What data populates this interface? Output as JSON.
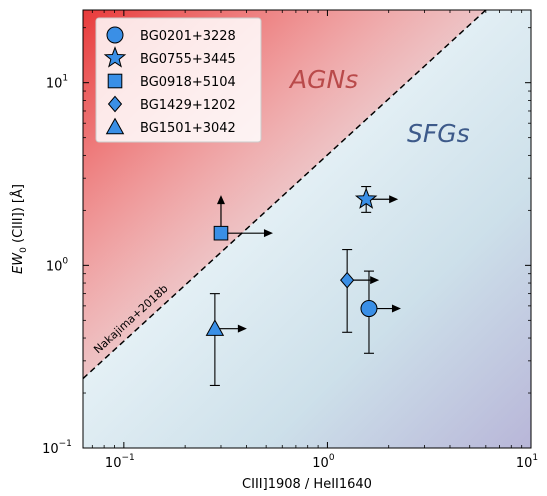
{
  "chart_data": {
    "type": "scatter",
    "xlabel": "CIII]1908 / HeII1640",
    "ylabel": "EW₀ (CIII]) [Å]",
    "x_scale": "log",
    "y_scale": "log",
    "xlim": [
      0.063,
      10
    ],
    "ylim": [
      0.1,
      25
    ],
    "x_ticks": [
      {
        "value": 0.1,
        "base": "10",
        "exp": "−1"
      },
      {
        "value": 1,
        "base": "10",
        "exp": "0"
      },
      {
        "value": 10,
        "base": "10",
        "exp": "1"
      }
    ],
    "y_ticks": [
      {
        "value": 0.1,
        "base": "10",
        "exp": "−1"
      },
      {
        "value": 1,
        "base": "10",
        "exp": "0"
      },
      {
        "value": 10,
        "base": "10",
        "exp": "1"
      }
    ],
    "regions": {
      "agn_label": "AGNs",
      "sfg_label": "SFGs"
    },
    "reference_line": {
      "label": "Nakajima+2018b",
      "points": [
        [
          0.063,
          0.24
        ],
        [
          6.0,
          25
        ]
      ]
    },
    "legend_position": "upper-left",
    "series": [
      {
        "name": "BG0201+3228",
        "marker": "circle",
        "x": 1.6,
        "y": 0.58,
        "y_err": [
          0.33,
          0.93
        ],
        "x_lower_limit": true
      },
      {
        "name": "BG0755+3445",
        "marker": "star",
        "x": 1.55,
        "y": 2.3,
        "y_err": [
          1.95,
          2.7
        ],
        "x_lower_limit": true
      },
      {
        "name": "BG0918+5104",
        "marker": "square",
        "x": 0.3,
        "y": 1.5,
        "y_lower_limit": true,
        "x_lower_limit": true
      },
      {
        "name": "BG1429+1202",
        "marker": "diamond",
        "x": 1.25,
        "y": 0.83,
        "y_err": [
          0.43,
          1.22
        ],
        "x_lower_limit": true
      },
      {
        "name": "BG1501+3042",
        "marker": "triangle",
        "x": 0.28,
        "y": 0.45,
        "y_err": [
          0.22,
          0.7
        ],
        "x_lower_limit": true
      }
    ],
    "colors": {
      "marker_fill": "#3a8fe6",
      "marker_edge": "#000000",
      "agn_region": "#e84848",
      "sfg_region": "#b9bfd9"
    }
  }
}
